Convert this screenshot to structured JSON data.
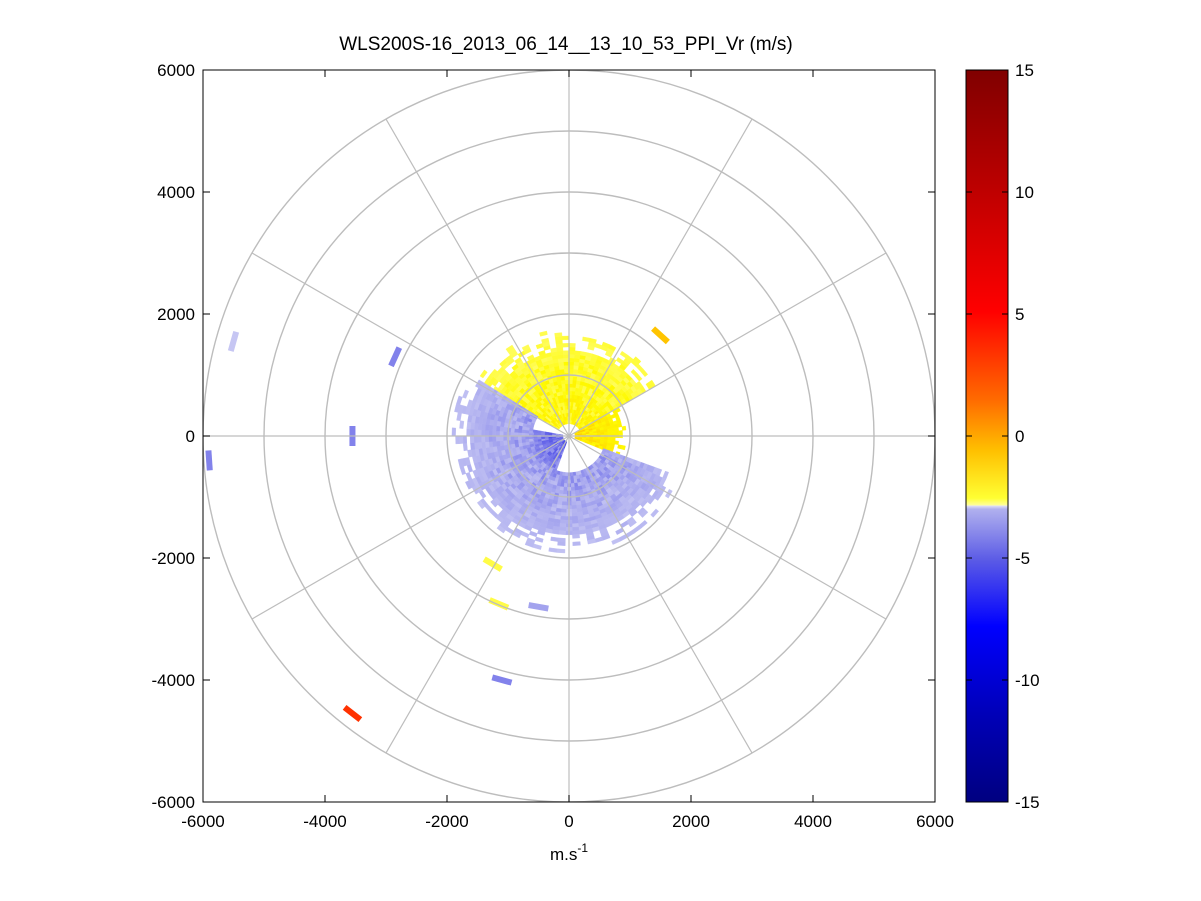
{
  "chart_data": {
    "type": "heatmap",
    "subtype": "polar-ppi",
    "title": "WLS200S-16_2013_06_14__13_10_53_PPI_Vr (m/s)",
    "xlabel": "m.s",
    "xlabel_superscript": "-1",
    "ylabel": "",
    "xlim": [
      -6000,
      6000
    ],
    "ylim": [
      -6000,
      6000
    ],
    "xticks": [
      "-6000",
      "-4000",
      "-2000",
      "0",
      "2000",
      "4000",
      "6000"
    ],
    "yticks": [
      "6000",
      "4000",
      "2000",
      "0",
      "-2000",
      "-4000",
      "-6000"
    ],
    "range_rings_m": [
      1000,
      2000,
      3000,
      4000,
      5000,
      6000
    ],
    "spokes_deg": [
      0,
      30,
      60,
      90,
      120,
      150,
      180,
      210,
      240,
      270,
      300,
      330
    ],
    "grid": true,
    "colorbar": {
      "label": "",
      "range": [
        -15,
        15
      ],
      "ticks": [
        "15",
        "10",
        "5",
        "0",
        "-5",
        "-10",
        "-15"
      ],
      "tick_values": [
        15,
        10,
        5,
        0,
        -5,
        -10,
        -15
      ],
      "colormap": "white-centred: yellow→orange→red→dark red above 0, light lavender→blue→navy below 0"
    },
    "regions": [
      {
        "name": "north sector (positive)",
        "az_from": -60,
        "az_to": 60,
        "r_from": 200,
        "r_to": 1750,
        "vr": 1.5
      },
      {
        "name": "east core (positive)",
        "az_from": 60,
        "az_to": 110,
        "r_from": 100,
        "r_to": 900,
        "vr": 2.5
      },
      {
        "name": "south-west core (negative)",
        "az_from": 200,
        "az_to": 280,
        "r_from": 100,
        "r_to": 900,
        "vr": -3.5
      },
      {
        "name": "south sector (negative)",
        "az_from": 110,
        "az_to": 300,
        "r_from": 600,
        "r_to": 1900,
        "vr": -2.0
      }
    ],
    "isolated_returns": [
      {
        "x": -3550,
        "y": -4550,
        "vr": 8
      },
      {
        "x": -5500,
        "y": 1550,
        "vr": -1
      },
      {
        "x": -2850,
        "y": 1300,
        "vr": -3
      },
      {
        "x": -3550,
        "y": 0,
        "vr": -3
      },
      {
        "x": -5900,
        "y": -400,
        "vr": -3
      },
      {
        "x": -1100,
        "y": -4000,
        "vr": -3
      },
      {
        "x": -500,
        "y": -2800,
        "vr": -2
      },
      {
        "x": -1150,
        "y": -2750,
        "vr": 1
      },
      {
        "x": -1250,
        "y": -2100,
        "vr": 1
      },
      {
        "x": 1500,
        "y": 1650,
        "vr": 3.5
      }
    ]
  }
}
